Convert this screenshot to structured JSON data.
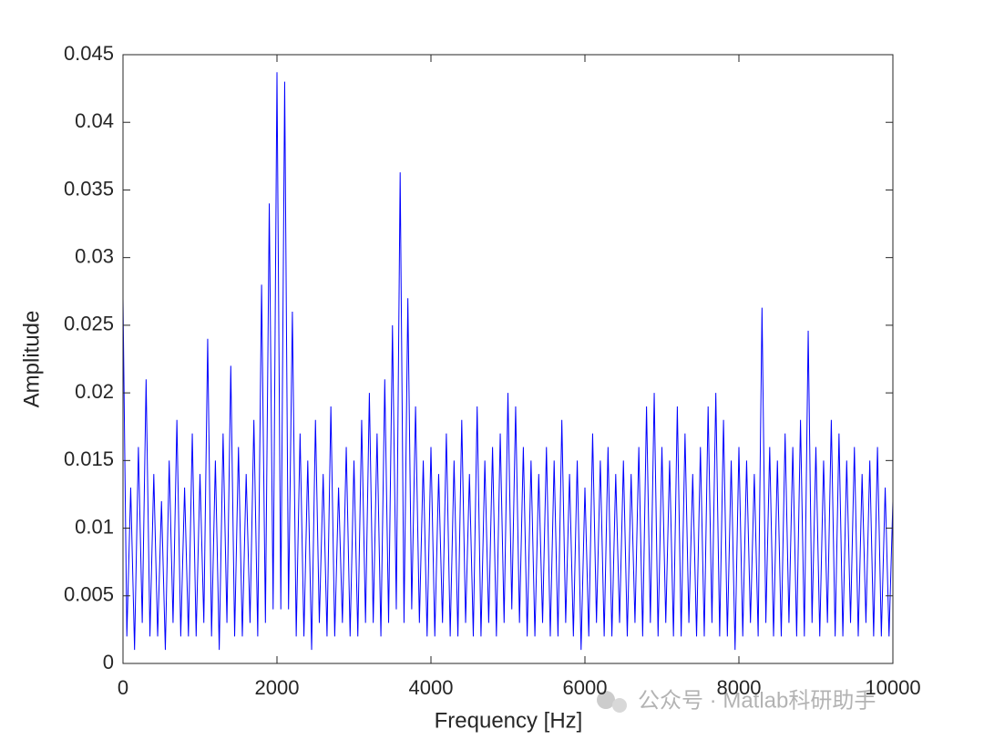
{
  "chart_data": {
    "type": "line",
    "xlabel": "Frequency [Hz]",
    "ylabel": "Amplitude",
    "annotation": "公众号 · Matlab科研助手",
    "color": "#0000ff",
    "xlim": [
      0,
      10000
    ],
    "xticks": [
      0,
      2000,
      4000,
      6000,
      8000,
      10000
    ],
    "ylim": [
      0,
      0.045
    ],
    "yticks": [
      0,
      0.005,
      0.01,
      0.015,
      0.02,
      0.025,
      0.03,
      0.035,
      0.04,
      0.045
    ],
    "x": [
      0,
      50,
      100,
      150,
      200,
      250,
      300,
      350,
      400,
      450,
      500,
      550,
      600,
      650,
      700,
      750,
      800,
      850,
      900,
      950,
      1000,
      1050,
      1100,
      1150,
      1200,
      1250,
      1300,
      1350,
      1400,
      1450,
      1500,
      1550,
      1600,
      1650,
      1700,
      1750,
      1800,
      1850,
      1900,
      1950,
      2000,
      2050,
      2100,
      2150,
      2200,
      2250,
      2300,
      2350,
      2400,
      2450,
      2500,
      2550,
      2600,
      2650,
      2700,
      2750,
      2800,
      2850,
      2900,
      2950,
      3000,
      3050,
      3100,
      3150,
      3200,
      3250,
      3300,
      3350,
      3400,
      3450,
      3500,
      3550,
      3600,
      3650,
      3700,
      3750,
      3800,
      3850,
      3900,
      3950,
      4000,
      4050,
      4100,
      4150,
      4200,
      4250,
      4300,
      4350,
      4400,
      4450,
      4500,
      4550,
      4600,
      4650,
      4700,
      4750,
      4800,
      4850,
      4900,
      4950,
      5000,
      5050,
      5100,
      5150,
      5200,
      5250,
      5300,
      5350,
      5400,
      5450,
      5500,
      5550,
      5600,
      5650,
      5700,
      5750,
      5800,
      5850,
      5900,
      5950,
      6000,
      6050,
      6100,
      6150,
      6200,
      6250,
      6300,
      6350,
      6400,
      6450,
      6500,
      6550,
      6600,
      6650,
      6700,
      6750,
      6800,
      6850,
      6900,
      6950,
      7000,
      7050,
      7100,
      7150,
      7200,
      7250,
      7300,
      7350,
      7400,
      7450,
      7500,
      7550,
      7600,
      7650,
      7700,
      7750,
      7800,
      7850,
      7900,
      7950,
      8000,
      8050,
      8100,
      8150,
      8200,
      8250,
      8300,
      8350,
      8400,
      8450,
      8500,
      8550,
      8600,
      8650,
      8700,
      8750,
      8800,
      8850,
      8900,
      8950,
      9000,
      9050,
      9100,
      9150,
      9200,
      9250,
      9300,
      9350,
      9400,
      9450,
      9500,
      9550,
      9600,
      9650,
      9700,
      9750,
      9800,
      9850,
      9900,
      9950,
      10000
    ],
    "values": [
      0.027,
      0.002,
      0.013,
      0.001,
      0.016,
      0.003,
      0.021,
      0.002,
      0.014,
      0.002,
      0.012,
      0.001,
      0.015,
      0.003,
      0.018,
      0.002,
      0.013,
      0.002,
      0.017,
      0.002,
      0.014,
      0.003,
      0.024,
      0.002,
      0.015,
      0.001,
      0.017,
      0.003,
      0.022,
      0.002,
      0.016,
      0.002,
      0.014,
      0.003,
      0.018,
      0.002,
      0.028,
      0.003,
      0.034,
      0.004,
      0.0437,
      0.004,
      0.043,
      0.004,
      0.026,
      0.002,
      0.017,
      0.002,
      0.015,
      0.001,
      0.018,
      0.003,
      0.014,
      0.002,
      0.019,
      0.002,
      0.013,
      0.003,
      0.016,
      0.002,
      0.015,
      0.002,
      0.018,
      0.003,
      0.02,
      0.003,
      0.017,
      0.002,
      0.021,
      0.003,
      0.025,
      0.004,
      0.0363,
      0.003,
      0.027,
      0.004,
      0.019,
      0.003,
      0.015,
      0.002,
      0.016,
      0.002,
      0.014,
      0.003,
      0.017,
      0.002,
      0.015,
      0.002,
      0.018,
      0.003,
      0.014,
      0.002,
      0.019,
      0.002,
      0.015,
      0.003,
      0.016,
      0.002,
      0.017,
      0.003,
      0.02,
      0.004,
      0.019,
      0.003,
      0.016,
      0.002,
      0.015,
      0.002,
      0.014,
      0.003,
      0.016,
      0.002,
      0.015,
      0.002,
      0.018,
      0.003,
      0.014,
      0.002,
      0.015,
      0.001,
      0.013,
      0.002,
      0.017,
      0.003,
      0.015,
      0.002,
      0.016,
      0.002,
      0.014,
      0.003,
      0.015,
      0.002,
      0.014,
      0.003,
      0.016,
      0.002,
      0.019,
      0.003,
      0.02,
      0.002,
      0.016,
      0.003,
      0.015,
      0.002,
      0.019,
      0.002,
      0.017,
      0.003,
      0.014,
      0.002,
      0.016,
      0.002,
      0.019,
      0.003,
      0.02,
      0.002,
      0.018,
      0.002,
      0.015,
      0.001,
      0.016,
      0.002,
      0.015,
      0.003,
      0.014,
      0.002,
      0.0263,
      0.003,
      0.016,
      0.002,
      0.015,
      0.002,
      0.017,
      0.003,
      0.016,
      0.002,
      0.018,
      0.002,
      0.0246,
      0.003,
      0.016,
      0.002,
      0.015,
      0.003,
      0.018,
      0.002,
      0.017,
      0.002,
      0.015,
      0.003,
      0.016,
      0.002,
      0.014,
      0.003,
      0.015,
      0.002,
      0.016,
      0.002,
      0.013,
      0.002,
      0.012
    ]
  }
}
